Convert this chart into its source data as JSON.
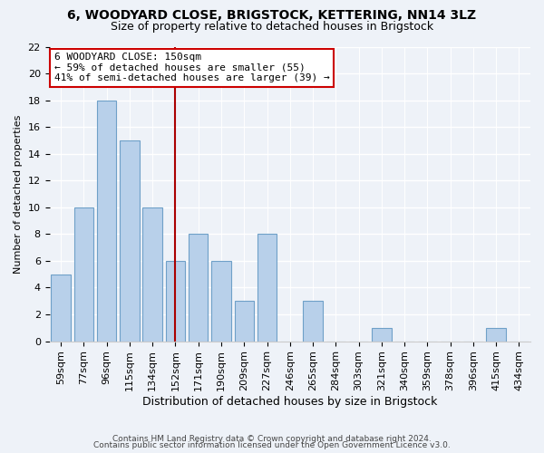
{
  "title": "6, WOODYARD CLOSE, BRIGSTOCK, KETTERING, NN14 3LZ",
  "subtitle": "Size of property relative to detached houses in Brigstock",
  "xlabel": "Distribution of detached houses by size in Brigstock",
  "ylabel": "Number of detached properties",
  "bar_labels": [
    "59sqm",
    "77sqm",
    "96sqm",
    "115sqm",
    "134sqm",
    "152sqm",
    "171sqm",
    "190sqm",
    "209sqm",
    "227sqm",
    "246sqm",
    "265sqm",
    "284sqm",
    "303sqm",
    "321sqm",
    "340sqm",
    "359sqm",
    "378sqm",
    "396sqm",
    "415sqm",
    "434sqm"
  ],
  "bar_values": [
    5,
    10,
    18,
    15,
    10,
    6,
    8,
    6,
    3,
    8,
    0,
    3,
    0,
    0,
    1,
    0,
    0,
    0,
    0,
    1,
    0
  ],
  "bar_color": "#b8d0ea",
  "bar_edge_color": "#6fa0c8",
  "vline_x_index": 5,
  "vline_color": "#aa0000",
  "annotation_title": "6 WOODYARD CLOSE: 150sqm",
  "annotation_line1": "← 59% of detached houses are smaller (55)",
  "annotation_line2": "41% of semi-detached houses are larger (39) →",
  "annotation_box_color": "#ffffff",
  "annotation_box_edge": "#cc0000",
  "ylim": [
    0,
    22
  ],
  "yticks": [
    0,
    2,
    4,
    6,
    8,
    10,
    12,
    14,
    16,
    18,
    20,
    22
  ],
  "footer1": "Contains HM Land Registry data © Crown copyright and database right 2024.",
  "footer2": "Contains public sector information licensed under the Open Government Licence v3.0.",
  "background_color": "#eef2f8",
  "title_fontsize": 10,
  "subtitle_fontsize": 9,
  "xlabel_fontsize": 9,
  "ylabel_fontsize": 8,
  "tick_fontsize": 8,
  "annotation_fontsize": 8,
  "footer_fontsize": 6.5
}
